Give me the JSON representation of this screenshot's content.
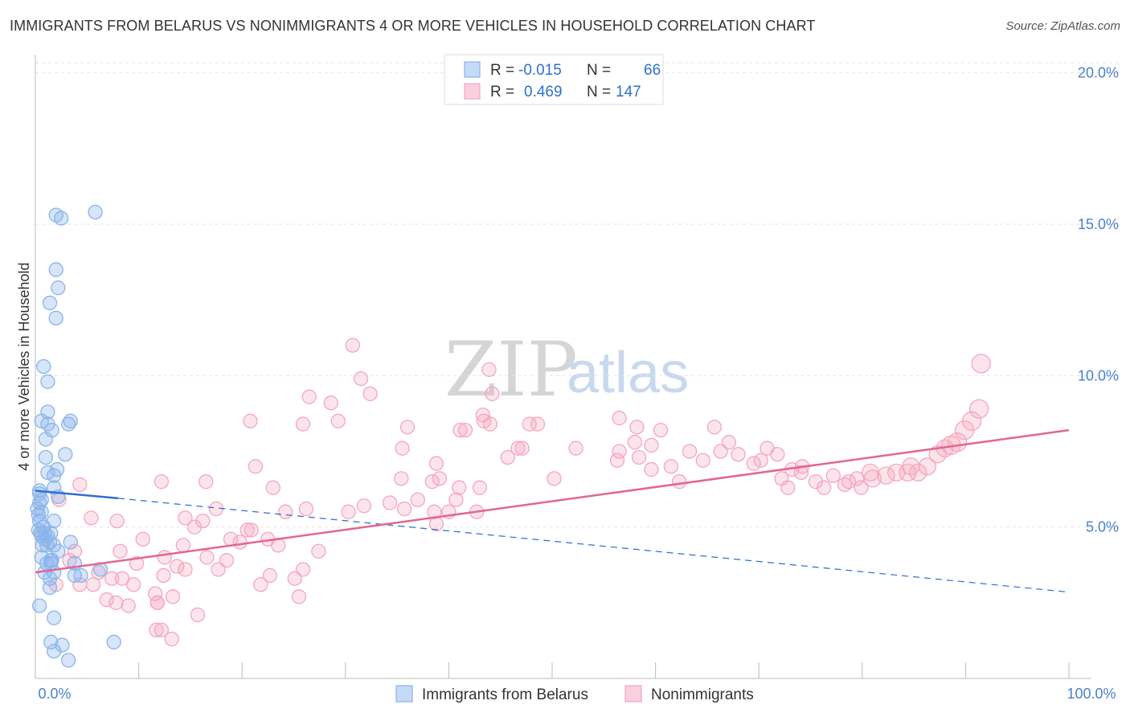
{
  "title": "IMMIGRANTS FROM BELARUS VS NONIMMIGRANTS 4 OR MORE VEHICLES IN HOUSEHOLD CORRELATION CHART",
  "source": "Source: ZipAtlas.com",
  "watermark": {
    "zip": "ZIP",
    "atlas": "atlas"
  },
  "chart_data": {
    "type": "scatter",
    "title": "IMMIGRANTS FROM BELARUS VS NONIMMIGRANTS 4 OR MORE VEHICLES IN HOUSEHOLD CORRELATION CHART",
    "xlabel": "",
    "ylabel": "4 or more Vehicles in Household",
    "xlim": [
      0,
      100
    ],
    "ylim": [
      0,
      20.6
    ],
    "x_tick_labels": [
      "0.0%",
      "100.0%"
    ],
    "y_ticks": [
      5,
      10,
      15,
      20
    ],
    "y_tick_labels": [
      "5.0%",
      "10.0%",
      "15.0%",
      "20.0%"
    ],
    "grid": true,
    "legend": {
      "placement": "top-center",
      "entries": [
        {
          "r_label": "R =",
          "r_value": "-0.015",
          "n_label": "N =",
          "n_value": "66"
        },
        {
          "r_label": "R =",
          "r_value": "0.469",
          "n_label": "N =",
          "n_value": "147"
        }
      ]
    },
    "series": [
      {
        "name": "Immigrants from Belarus",
        "color": "#8ab4ec",
        "line_color": "#2f6fd0",
        "trend": {
          "x0": 0,
          "y0": 6.2,
          "x1": 8,
          "y1": 5.95,
          "dash_x1": 100,
          "dash_y1": 2.85
        },
        "points": [
          [
            2,
            15.3
          ],
          [
            2.5,
            15.2
          ],
          [
            5.8,
            15.4
          ],
          [
            2,
            13.5
          ],
          [
            2.2,
            12.9
          ],
          [
            1.4,
            12.4
          ],
          [
            2,
            11.9
          ],
          [
            0.8,
            10.3
          ],
          [
            1.2,
            9.8
          ],
          [
            1.2,
            8.8
          ],
          [
            0.6,
            8.5
          ],
          [
            1.2,
            8.4
          ],
          [
            1.6,
            8.2
          ],
          [
            3.2,
            8.4
          ],
          [
            3.4,
            8.5
          ],
          [
            1,
            7.9
          ],
          [
            2.9,
            7.4
          ],
          [
            1,
            7.3
          ],
          [
            2.1,
            6.9
          ],
          [
            1.2,
            6.8
          ],
          [
            1.8,
            6.7
          ],
          [
            1.8,
            6.3
          ],
          [
            0.4,
            6.1
          ],
          [
            2.2,
            6
          ],
          [
            0.6,
            5.9
          ],
          [
            0.4,
            5.8
          ],
          [
            0.2,
            5.6
          ],
          [
            0.6,
            5.5
          ],
          [
            1.8,
            5.2
          ],
          [
            0.4,
            5.2
          ],
          [
            0.8,
            5
          ],
          [
            0.3,
            4.9
          ],
          [
            0.9,
            4.8
          ],
          [
            1.5,
            4.8
          ],
          [
            0.6,
            4.7
          ],
          [
            0.9,
            4.6
          ],
          [
            1.4,
            4.5
          ],
          [
            1.8,
            4.4
          ],
          [
            3.4,
            4.5
          ],
          [
            1.1,
            4.4
          ],
          [
            2.2,
            4.2
          ],
          [
            0.6,
            4
          ],
          [
            1.6,
            3.9
          ],
          [
            1.1,
            3.8
          ],
          [
            1.5,
            3.8
          ],
          [
            3.8,
            3.8
          ],
          [
            0.9,
            3.5
          ],
          [
            1.8,
            3.5
          ],
          [
            3.8,
            3.4
          ],
          [
            4.4,
            3.4
          ],
          [
            6.3,
            3.6
          ],
          [
            1.4,
            3.3
          ],
          [
            1.4,
            3
          ],
          [
            0.4,
            2.4
          ],
          [
            1.8,
            2
          ],
          [
            1.5,
            1.2
          ],
          [
            2.6,
            1.1
          ],
          [
            7.6,
            1.2
          ],
          [
            1.8,
            0.9
          ],
          [
            3.2,
            0.6
          ],
          [
            0.4,
            6.2
          ],
          [
            0.3,
            5.4
          ],
          [
            0.5,
            4.8
          ],
          [
            0.7,
            4.4
          ],
          [
            1.2,
            4.7
          ],
          [
            1.5,
            3.9
          ]
        ]
      },
      {
        "name": "Nonimmigrants",
        "color": "#f5a6be",
        "line_color": "#e2668f",
        "trend": {
          "x0": 0,
          "y0": 3.5,
          "x1": 100,
          "y1": 8.2
        },
        "points": [
          [
            20.8,
            8.5
          ],
          [
            26.5,
            9.3
          ],
          [
            25.9,
            8.4
          ],
          [
            30.7,
            11
          ],
          [
            43.9,
            10.2
          ],
          [
            44.2,
            9.4
          ],
          [
            43.3,
            8.7
          ],
          [
            44,
            8.4
          ],
          [
            41.6,
            8.2
          ],
          [
            43.4,
            8.5
          ],
          [
            45.7,
            7.3
          ],
          [
            47.1,
            7.6
          ],
          [
            47.8,
            8.4
          ],
          [
            43,
            6.3
          ],
          [
            42.7,
            5.5
          ],
          [
            46.7,
            7.6
          ],
          [
            48.6,
            8.4
          ],
          [
            50.2,
            6.6
          ],
          [
            52.3,
            7.6
          ],
          [
            56.3,
            7.2
          ],
          [
            56.5,
            7.5
          ],
          [
            56.5,
            8.6
          ],
          [
            58,
            7.8
          ],
          [
            58.4,
            7.3
          ],
          [
            58.2,
            8.3
          ],
          [
            59.6,
            7.7
          ],
          [
            59.6,
            6.9
          ],
          [
            60.5,
            8.2
          ],
          [
            61.5,
            7
          ],
          [
            62.3,
            6.5
          ],
          [
            63.3,
            7.5
          ],
          [
            64.6,
            7.2
          ],
          [
            65.7,
            8.3
          ],
          [
            66.3,
            7.5
          ],
          [
            67.1,
            7.8
          ],
          [
            68,
            7.4
          ],
          [
            69.5,
            7.1
          ],
          [
            70.2,
            7.2
          ],
          [
            70.8,
            7.6
          ],
          [
            71.8,
            7.4
          ],
          [
            72.2,
            6.6
          ],
          [
            72.8,
            6.3
          ],
          [
            73.2,
            6.9
          ],
          [
            74.1,
            6.8
          ],
          [
            74.2,
            7
          ],
          [
            75.5,
            6.5
          ],
          [
            76.3,
            6.3
          ],
          [
            77.2,
            6.7
          ],
          [
            78.3,
            6.4
          ],
          [
            78.7,
            6.5
          ],
          [
            79.5,
            6.6
          ],
          [
            79.9,
            6.3
          ],
          [
            80.8,
            6.8
          ],
          [
            81,
            6.6
          ],
          [
            82.3,
            6.7
          ],
          [
            83.3,
            6.8
          ],
          [
            84.4,
            6.8
          ],
          [
            84.7,
            7
          ],
          [
            85.4,
            6.8
          ],
          [
            86.3,
            7
          ],
          [
            87.3,
            7.4
          ],
          [
            88,
            7.6
          ],
          [
            88.6,
            7.7
          ],
          [
            89.2,
            7.8
          ],
          [
            89.9,
            8.2
          ],
          [
            90.6,
            8.5
          ],
          [
            91.3,
            8.9
          ],
          [
            91.5,
            10.4
          ],
          [
            36,
            8.3
          ],
          [
            32.4,
            9.4
          ],
          [
            31.5,
            9.9
          ],
          [
            29.3,
            8.5
          ],
          [
            28.6,
            9.1
          ],
          [
            38.4,
            6.5
          ],
          [
            37,
            5.9
          ],
          [
            38.8,
            7.1
          ],
          [
            40.7,
            5.9
          ],
          [
            41,
            6.3
          ],
          [
            41.1,
            8.2
          ],
          [
            39.1,
            6.6
          ],
          [
            40,
            5.5
          ],
          [
            38.6,
            5.5
          ],
          [
            34.3,
            5.8
          ],
          [
            35.7,
            5.6
          ],
          [
            35.5,
            7.6
          ],
          [
            35.4,
            6.6
          ],
          [
            38.8,
            5.1
          ],
          [
            31.8,
            5.7
          ],
          [
            30.3,
            5.5
          ],
          [
            26.2,
            5.6
          ],
          [
            24.2,
            5.5
          ],
          [
            23,
            6.3
          ],
          [
            21.3,
            7
          ],
          [
            20.9,
            4.9
          ],
          [
            22.5,
            4.6
          ],
          [
            20.5,
            4.9
          ],
          [
            23.5,
            4.4
          ],
          [
            25.9,
            3.6
          ],
          [
            25.1,
            3.3
          ],
          [
            25.5,
            2.7
          ],
          [
            21.8,
            3.1
          ],
          [
            22.7,
            3.4
          ],
          [
            18.5,
            3.9
          ],
          [
            16.6,
            4
          ],
          [
            16.2,
            5.2
          ],
          [
            16.5,
            6.5
          ],
          [
            17.5,
            5.6
          ],
          [
            14.5,
            5.3
          ],
          [
            15.4,
            5
          ],
          [
            17.7,
            3.6
          ],
          [
            13.7,
            3.7
          ],
          [
            12.5,
            4
          ],
          [
            12.4,
            3.4
          ],
          [
            13.3,
            2.7
          ],
          [
            11.8,
            2.5
          ],
          [
            9.8,
            3.8
          ],
          [
            8.4,
            3.3
          ],
          [
            7.4,
            3.3
          ],
          [
            6.1,
            3.5
          ],
          [
            7.8,
            2.5
          ],
          [
            15.7,
            2.1
          ],
          [
            13.2,
            1.3
          ],
          [
            12.2,
            1.6
          ],
          [
            11.6,
            2.8
          ],
          [
            9.5,
            3.1
          ],
          [
            9,
            2.4
          ],
          [
            6.9,
            2.6
          ],
          [
            5.6,
            3.1
          ],
          [
            4.3,
            3.1
          ],
          [
            3.3,
            3.9
          ],
          [
            3.8,
            4.2
          ],
          [
            2,
            3.1
          ],
          [
            10.4,
            4.6
          ],
          [
            8.2,
            4.2
          ],
          [
            11.7,
            1.6
          ],
          [
            11.8,
            2.5
          ],
          [
            14.5,
            3.6
          ],
          [
            12.2,
            6.5
          ],
          [
            5.4,
            5.3
          ],
          [
            7.9,
            5.2
          ],
          [
            4.3,
            6.4
          ],
          [
            2.3,
            5.9
          ],
          [
            14.3,
            4.4
          ],
          [
            19.8,
            4.5
          ],
          [
            18.9,
            4.6
          ],
          [
            27.4,
            4.2
          ]
        ]
      }
    ]
  },
  "bottom_legend": [
    {
      "label": "Immigrants from Belarus"
    },
    {
      "label": "Nonimmigrants"
    }
  ]
}
